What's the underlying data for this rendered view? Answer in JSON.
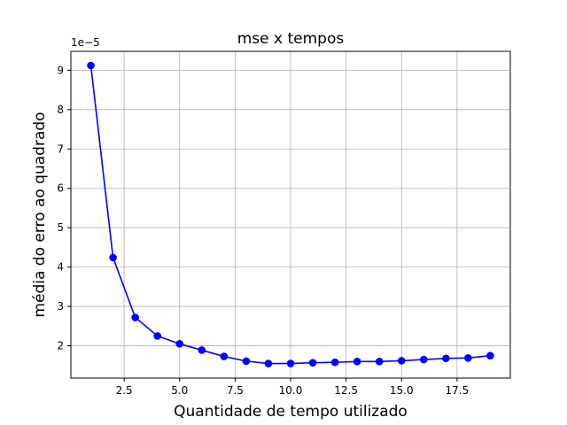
{
  "chart_data": {
    "type": "line",
    "title": "mse x tempos",
    "xlabel": "Quantidade de tempo utilizado",
    "ylabel": "média do erro ao quadrado",
    "y_offset_label": "1e−5",
    "y_scale_note": "values in units of 1e-5",
    "xlim": [
      0.1,
      19.9
    ],
    "ylim": [
      1.18,
      9.48
    ],
    "x_ticks": [
      2.5,
      5.0,
      7.5,
      10.0,
      12.5,
      15.0,
      17.5
    ],
    "x_tick_labels": [
      "2.5",
      "5.0",
      "7.5",
      "10.0",
      "12.5",
      "15.0",
      "17.5"
    ],
    "y_ticks": [
      2,
      3,
      4,
      5,
      6,
      7,
      8,
      9
    ],
    "y_tick_labels": [
      "2",
      "3",
      "4",
      "5",
      "6",
      "7",
      "8",
      "9"
    ],
    "grid": true,
    "series": [
      {
        "color": "#0000ff",
        "marker": "circle",
        "x": [
          1,
          2,
          3,
          4,
          5,
          6,
          7,
          8,
          9,
          10,
          11,
          12,
          13,
          14,
          15,
          16,
          17,
          18,
          19
        ],
        "y": [
          9.12,
          4.24,
          2.72,
          2.25,
          2.05,
          1.89,
          1.73,
          1.61,
          1.55,
          1.55,
          1.57,
          1.58,
          1.6,
          1.6,
          1.62,
          1.65,
          1.68,
          1.69,
          1.75
        ]
      }
    ]
  }
}
